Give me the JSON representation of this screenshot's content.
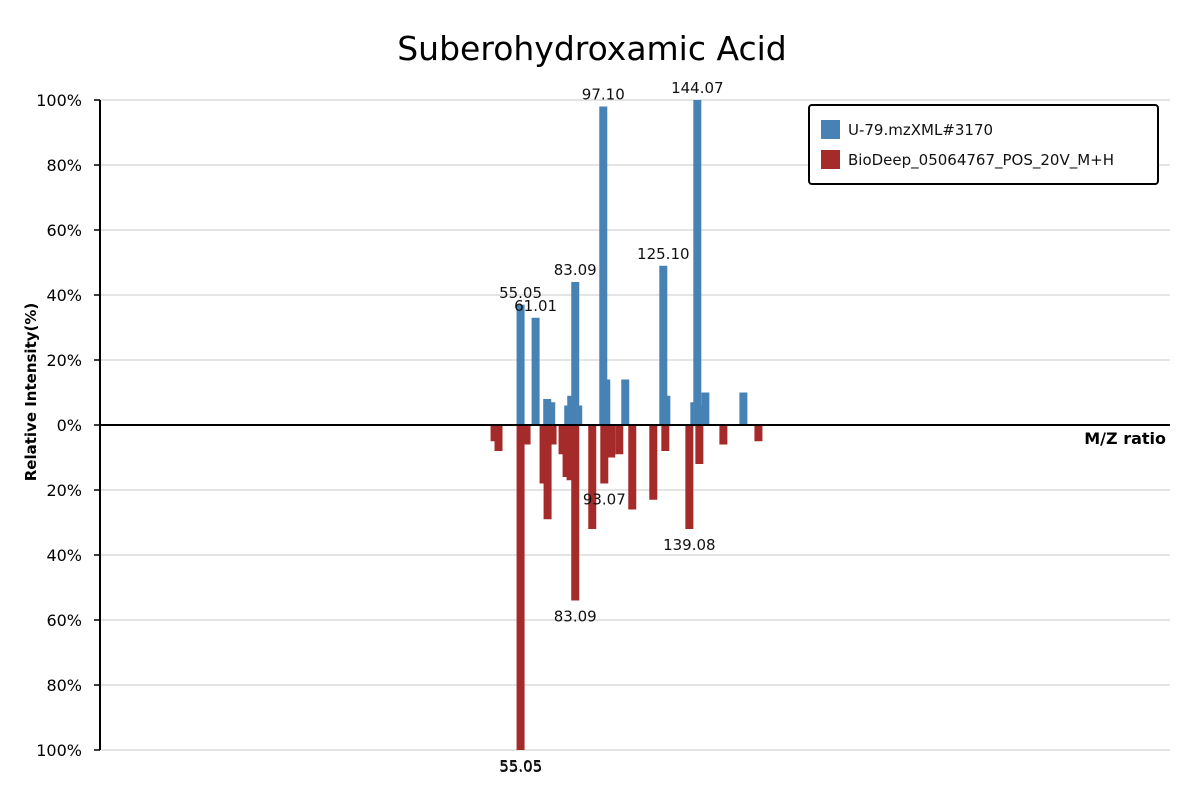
{
  "chart_data": {
    "type": "bar",
    "title": "Suberohydroxamic Acid",
    "xlabel": "M/Z ratio",
    "ylabel": "Relative Intensity(%)",
    "ylim": [
      -100,
      100
    ],
    "xlim": [
      0,
      200
    ],
    "y_ticks": [
      {
        "value": 100,
        "label": "100%"
      },
      {
        "value": 80,
        "label": "80%"
      },
      {
        "value": 60,
        "label": "60%"
      },
      {
        "value": 40,
        "label": "40%"
      },
      {
        "value": 20,
        "label": "20%"
      },
      {
        "value": 0,
        "label": "0%"
      },
      {
        "value": -20,
        "label": "20%"
      },
      {
        "value": -40,
        "label": "40%"
      },
      {
        "value": -60,
        "label": "60%"
      },
      {
        "value": -80,
        "label": "80%"
      },
      {
        "value": -100,
        "label": "100%"
      }
    ],
    "grid": true,
    "legend_position": "top-right",
    "series": [
      {
        "name": "U-79.mzXML#3170",
        "color": "#4682b4",
        "direction": "up",
        "peaks": [
          {
            "mz": 78.61,
            "intensity": 37,
            "label": "55.05"
          },
          {
            "mz": 81.42,
            "intensity": 33,
            "label": "61.01"
          },
          {
            "mz": 83.59,
            "intensity": 8
          },
          {
            "mz": 84.34,
            "intensity": 7
          },
          {
            "mz": 87.52,
            "intensity": 6
          },
          {
            "mz": 88.08,
            "intensity": 9
          },
          {
            "mz": 88.83,
            "intensity": 44,
            "label": "83.09"
          },
          {
            "mz": 89.39,
            "intensity": 6
          },
          {
            "mz": 94.07,
            "intensity": 98,
            "label": "97.10"
          },
          {
            "mz": 94.63,
            "intensity": 14
          },
          {
            "mz": 98.18,
            "intensity": 14
          },
          {
            "mz": 105.29,
            "intensity": 49,
            "label": "125.10"
          },
          {
            "mz": 105.86,
            "intensity": 9
          },
          {
            "mz": 111.09,
            "intensity": 7
          },
          {
            "mz": 111.65,
            "intensity": 100,
            "label": "144.07"
          },
          {
            "mz": 112.21,
            "intensity": 6
          },
          {
            "mz": 113.15,
            "intensity": 10
          },
          {
            "mz": 120.26,
            "intensity": 10
          }
        ]
      },
      {
        "name": "BioDeep_05064767_POS_20V_M+H",
        "color": "#a52a2a",
        "direction": "down",
        "peaks": [
          {
            "mz": 73.75,
            "intensity": 5
          },
          {
            "mz": 74.49,
            "intensity": 8
          },
          {
            "mz": 78.61,
            "intensity": 100,
            "label": "55.05"
          },
          {
            "mz": 79.73,
            "intensity": 6
          },
          {
            "mz": 82.91,
            "intensity": 18
          },
          {
            "mz": 83.66,
            "intensity": 29
          },
          {
            "mz": 84.59,
            "intensity": 6
          },
          {
            "mz": 86.46,
            "intensity": 9
          },
          {
            "mz": 87.21,
            "intensity": 16
          },
          {
            "mz": 87.96,
            "intensity": 17
          },
          {
            "mz": 88.83,
            "intensity": 54,
            "label": "83.09"
          },
          {
            "mz": 92.01,
            "intensity": 32
          },
          {
            "mz": 94.26,
            "intensity": 18,
            "label": "93.07"
          },
          {
            "mz": 95.56,
            "intensity": 10
          },
          {
            "mz": 97.06,
            "intensity": 9
          },
          {
            "mz": 99.49,
            "intensity": 26
          },
          {
            "mz": 103.42,
            "intensity": 23
          },
          {
            "mz": 105.67,
            "intensity": 8
          },
          {
            "mz": 110.16,
            "intensity": 32,
            "label": "139.08"
          },
          {
            "mz": 112.03,
            "intensity": 12
          },
          {
            "mz": 116.52,
            "intensity": 6
          },
          {
            "mz": 123.07,
            "intensity": 5
          }
        ]
      }
    ],
    "x_tick_label": "55.05"
  }
}
